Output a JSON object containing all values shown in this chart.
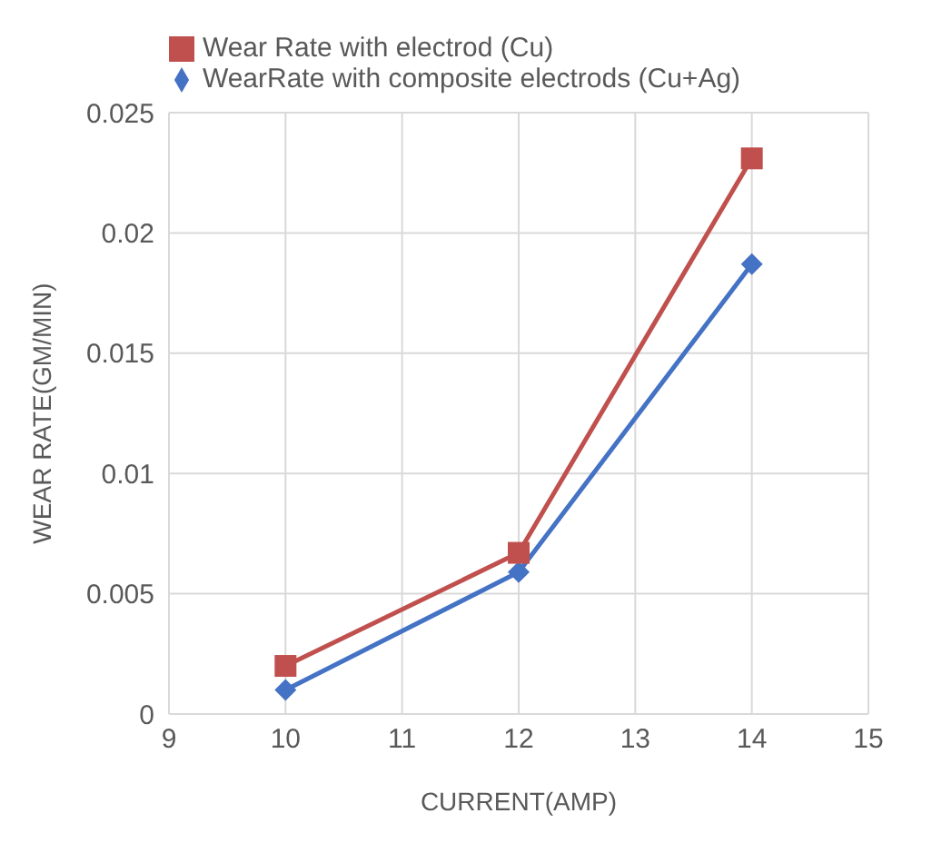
{
  "chart_data": {
    "type": "line",
    "xlabel": "CURRENT(AMP)",
    "ylabel": "WEAR RATE(GM/MIN)",
    "x": [
      10,
      12,
      14
    ],
    "series": [
      {
        "name": "WearRate with composite electrods (Cu+Ag)",
        "color": "#4472c4",
        "marker": "diamond",
        "values": [
          0.001,
          0.0059,
          0.0187
        ]
      },
      {
        "name": "Wear Rate  with electrod (Cu)",
        "color": "#c0504d",
        "marker": "square",
        "values": [
          0.002,
          0.0067,
          0.0231
        ]
      }
    ],
    "xlim": [
      9,
      15
    ],
    "xticks": [
      9,
      10,
      11,
      12,
      13,
      14,
      15
    ],
    "ylim": [
      0,
      0.025
    ],
    "yticks": [
      0,
      0.005,
      0.01,
      0.015,
      0.02,
      0.025
    ],
    "grid": true,
    "legend": "top",
    "line_style": "solid"
  }
}
